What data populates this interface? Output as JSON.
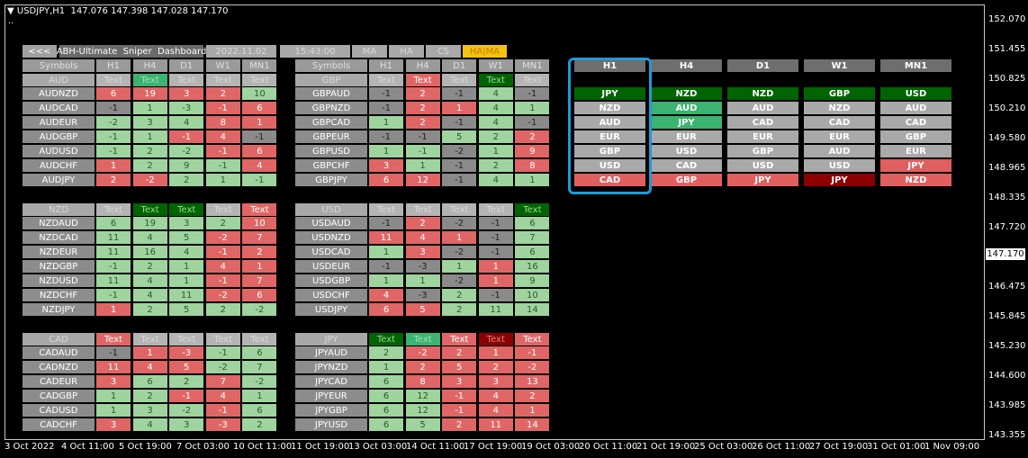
{
  "title_bar": {
    "symbol": "USDJPY,H1",
    "ohlc": "147.076 147.398 147.028 147.170",
    "dots": ".."
  },
  "toolbar": [
    "<<<",
    "ABH-Ultimate  Sniper  Dashboard",
    "2022.11.02",
    "15:43:00",
    "MA",
    "HA",
    "CS",
    "HA|MA"
  ],
  "header": [
    "Symbols",
    "H1",
    "H4",
    "D1",
    "W1",
    "MN1"
  ],
  "tables": [
    {
      "currency": "AUD",
      "cells": [
        "Text",
        "Text",
        "Text",
        "Text",
        "Text"
      ],
      "cell_colors": "tmttt",
      "rows": [
        {
          "symbol": "AUDNZD",
          "values": [
            6,
            19,
            3,
            2,
            10
          ],
          "colors": "rrrrg"
        },
        {
          "symbol": "AUDCAD",
          "values": [
            -1,
            1,
            -3,
            -1,
            6
          ],
          "colors": "nggrr"
        },
        {
          "symbol": "AUDEUR",
          "values": [
            -2,
            3,
            4,
            8,
            1
          ],
          "colors": "gggrr"
        },
        {
          "symbol": "AUDGBP",
          "values": [
            -1,
            1,
            -1,
            4,
            -1
          ],
          "colors": "ggrrn"
        },
        {
          "symbol": "AUDUSD",
          "values": [
            -1,
            2,
            -2,
            -1,
            6
          ],
          "colors": "gggrr"
        },
        {
          "symbol": "AUDCHF",
          "values": [
            1,
            2,
            9,
            -1,
            4
          ],
          "colors": "rgggr"
        },
        {
          "symbol": "AUDJPY",
          "values": [
            2,
            -2,
            2,
            1,
            -1
          ],
          "colors": "rrggg"
        }
      ]
    },
    {
      "currency": "GBP",
      "cells": [
        "Text",
        "Text",
        "Text",
        "Text",
        "Text"
      ],
      "cell_colors": "trtGt",
      "rows": [
        {
          "symbol": "GBPAUD",
          "values": [
            -1,
            2,
            -1,
            4,
            -1
          ],
          "colors": "nrngn"
        },
        {
          "symbol": "GBPNZD",
          "values": [
            -1,
            2,
            1,
            4,
            1
          ],
          "colors": "nrrgg"
        },
        {
          "symbol": "GBPCAD",
          "values": [
            1,
            2,
            -1,
            4,
            -1
          ],
          "colors": "grngn"
        },
        {
          "symbol": "GBPEUR",
          "values": [
            -1,
            -1,
            5,
            2,
            2
          ],
          "colors": "nnggr"
        },
        {
          "symbol": "GBPUSD",
          "values": [
            1,
            -1,
            -2,
            1,
            9
          ],
          "colors": "ggngr"
        },
        {
          "symbol": "GBPCHF",
          "values": [
            3,
            1,
            -1,
            2,
            8
          ],
          "colors": "rgngr"
        },
        {
          "symbol": "GBPJPY",
          "values": [
            6,
            12,
            -1,
            4,
            1
          ],
          "colors": "rrngg"
        }
      ]
    },
    {
      "currency": "NZD",
      "cells": [
        "Text",
        "Text",
        "Text",
        "Text",
        "Text"
      ],
      "cell_colors": "tGGtr",
      "rows": [
        {
          "symbol": "NZDAUD",
          "values": [
            6,
            19,
            3,
            2,
            10
          ],
          "colors": "ggggr"
        },
        {
          "symbol": "NZDCAD",
          "values": [
            11,
            4,
            5,
            -2,
            7
          ],
          "colors": "gggrr"
        },
        {
          "symbol": "NZDEUR",
          "values": [
            11,
            16,
            4,
            -1,
            2
          ],
          "colors": "gggrr"
        },
        {
          "symbol": "NZDGBP",
          "values": [
            -1,
            2,
            1,
            4,
            1
          ],
          "colors": "gggrr"
        },
        {
          "symbol": "NZDUSD",
          "values": [
            11,
            4,
            1,
            -1,
            7
          ],
          "colors": "gggrr"
        },
        {
          "symbol": "NZDCHF",
          "values": [
            -1,
            4,
            11,
            -2,
            6
          ],
          "colors": "gggrr"
        },
        {
          "symbol": "NZDJPY",
          "values": [
            1,
            2,
            5,
            2,
            -2
          ],
          "colors": "rgggg"
        }
      ]
    },
    {
      "currency": "USD",
      "cells": [
        "Text",
        "Text",
        "Text",
        "Text",
        "Text"
      ],
      "cell_colors": "ttttG",
      "rows": [
        {
          "symbol": "USDAUD",
          "values": [
            -1,
            2,
            -2,
            -1,
            6
          ],
          "colors": "nrnng"
        },
        {
          "symbol": "USDNZD",
          "values": [
            11,
            4,
            1,
            -1,
            7
          ],
          "colors": "rrrng"
        },
        {
          "symbol": "USDCAD",
          "values": [
            1,
            3,
            -2,
            -1,
            6
          ],
          "colors": "grnng"
        },
        {
          "symbol": "USDEUR",
          "values": [
            -1,
            -3,
            1,
            1,
            16
          ],
          "colors": "nngrg"
        },
        {
          "symbol": "USDGBP",
          "values": [
            1,
            1,
            -2,
            1,
            9
          ],
          "colors": "ggnrg"
        },
        {
          "symbol": "USDCHF",
          "values": [
            4,
            -3,
            2,
            -1,
            10
          ],
          "colors": "rngng"
        },
        {
          "symbol": "USDJPY",
          "values": [
            6,
            5,
            2,
            11,
            14
          ],
          "colors": "rrggg"
        }
      ]
    },
    {
      "currency": "CAD",
      "cells": [
        "Text",
        "Text",
        "Text",
        "Text",
        "Text"
      ],
      "cell_colors": "rtttt",
      "rows": [
        {
          "symbol": "CADAUD",
          "values": [
            -1,
            1,
            -3,
            -1,
            6
          ],
          "colors": "nrrgg"
        },
        {
          "symbol": "CADNZD",
          "values": [
            11,
            4,
            5,
            -2,
            7
          ],
          "colors": "rrrgg"
        },
        {
          "symbol": "CADEUR",
          "values": [
            3,
            6,
            2,
            7,
            -2
          ],
          "colors": "rggrg"
        },
        {
          "symbol": "CADGBP",
          "values": [
            1,
            2,
            -1,
            4,
            1
          ],
          "colors": "ggrrg"
        },
        {
          "symbol": "CADUSD",
          "values": [
            1,
            3,
            -2,
            -1,
            6
          ],
          "colors": "gggrg"
        },
        {
          "symbol": "CADCHF",
          "values": [
            3,
            4,
            3,
            -3,
            2
          ],
          "colors": "rggrg"
        }
      ]
    },
    {
      "currency": "JPY",
      "cells": [
        "Text",
        "Text",
        "Text",
        "Text",
        "Text"
      ],
      "cell_colors": "GmrDr",
      "rows": [
        {
          "symbol": "JPYAUD",
          "values": [
            2,
            -2,
            2,
            1,
            -1
          ],
          "colors": "grrrr"
        },
        {
          "symbol": "JPYNZD",
          "values": [
            1,
            2,
            5,
            2,
            -2
          ],
          "colors": "grrrr"
        },
        {
          "symbol": "JPYCAD",
          "values": [
            6,
            8,
            3,
            3,
            13
          ],
          "colors": "grrrr"
        },
        {
          "symbol": "JPYEUR",
          "values": [
            6,
            12,
            -1,
            4,
            2
          ],
          "colors": "ggrrr"
        },
        {
          "symbol": "JPYGBP",
          "values": [
            6,
            12,
            -1,
            4,
            1
          ],
          "colors": "ggrrr"
        },
        {
          "symbol": "JPYUSD",
          "values": [
            6,
            5,
            2,
            11,
            14
          ],
          "colors": "ggrrr"
        }
      ]
    }
  ],
  "strength": {
    "columns": [
      "H1",
      "H4",
      "D1",
      "W1",
      "MN1"
    ],
    "ranks": [
      [
        "JPY",
        "NZD",
        "AUD",
        "EUR",
        "GBP",
        "USD",
        "CAD"
      ],
      [
        "NZD",
        "AUD",
        "JPY",
        "EUR",
        "USD",
        "CAD",
        "GBP"
      ],
      [
        "NZD",
        "AUD",
        "CAD",
        "EUR",
        "GBP",
        "USD",
        "JPY"
      ],
      [
        "GBP",
        "NZD",
        "CAD",
        "EUR",
        "AUD",
        "USD",
        "JPY"
      ],
      [
        "USD",
        "AUD",
        "CAD",
        "GBP",
        "EUR",
        "JPY",
        "NZD"
      ]
    ],
    "colors": [
      "Gnnnnnr",
      "Gmmnnnr",
      "Gnnnnnr",
      "GnnnnnD",
      "Gnnnnrr"
    ]
  },
  "price_axis": {
    "labels": [
      "152.070",
      "151.455",
      "150.825",
      "150.210",
      "149.580",
      "148.965",
      "148.335",
      "147.720",
      "146.475",
      "145.845",
      "145.230",
      "144.600",
      "143.985",
      "143.355"
    ],
    "current": "147.170"
  },
  "time_axis": [
    "3 Oct 2022",
    "4 Oct 11:00",
    "5 Oct 19:00",
    "7 Oct 03:00",
    "10 Oct 11:00",
    "11 Oct 19:00",
    "13 Oct 03:00",
    "14 Oct 11:00",
    "17 Oct 19:00",
    "19 Oct 03:00",
    "20 Oct 11:00",
    "21 Oct 19:00",
    "25 Oct 03:00",
    "26 Oct 11:00",
    "27 Oct 19:00",
    "31 Oct 01:00",
    "1 Nov 09:00"
  ]
}
